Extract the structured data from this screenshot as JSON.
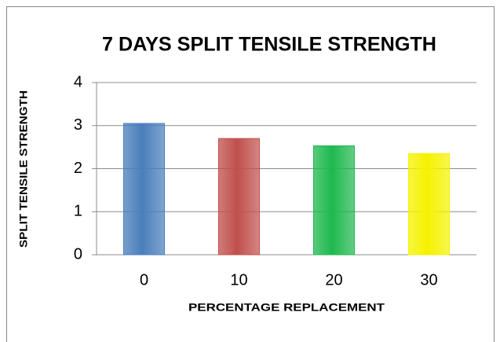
{
  "chart_data": {
    "type": "bar",
    "title": "7 DAYS SPLIT TENSILE STRENGTH",
    "x_label": "PERCENTAGE REPLACEMENT",
    "y_label": "SPLIT TENSILE STRENGTH",
    "categories": [
      "0",
      "10",
      "20",
      "30"
    ],
    "values": [
      3.05,
      2.7,
      2.53,
      2.35
    ],
    "colors": [
      "#4a7ebb",
      "#c0504d",
      "#1fb84f",
      "#f5f200"
    ],
    "ylim": [
      0,
      4
    ],
    "yticks": [
      0,
      1,
      2,
      3,
      4
    ],
    "grid": true
  }
}
